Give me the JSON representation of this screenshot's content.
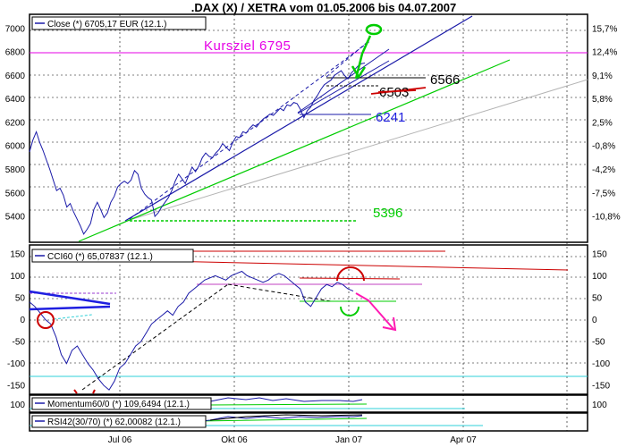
{
  "title": ".DAX (X) / XETRA vom 01.05.2006 bis 04.07.2007",
  "colors": {
    "price_line": "#1a1aa8",
    "dashed_line": "#1a1aa8",
    "target": "#e600e6",
    "support_green": "#00cc00",
    "support_gray": "#b4b4b4",
    "resistance_red": "#cc0000",
    "arrow_pink": "#ff1ab3",
    "cyan": "#2fd0d8",
    "black": "#000000",
    "blue_marker": "#1f1fe0"
  },
  "chart_data": [
    {
      "type": "line",
      "panel": "price",
      "legend": "Close (*) 6705,17 EUR (12.1.)",
      "y_range": [
        5180,
        7120
      ],
      "y_ticks_left": [
        "7000",
        "6800",
        "6600",
        "6400",
        "6200",
        "6000",
        "5800",
        "5600",
        "5400"
      ],
      "y_ticks_right": [
        "15,7%",
        "12,4%",
        "9,1%",
        "5,8%",
        "2,5%",
        "-0,8%",
        "-4,2%",
        "-7,5%",
        "-10,8%"
      ],
      "x_tick_labels": [
        "Jul 06",
        "Okt 06",
        "Jan 07",
        "Apr 07"
      ],
      "series": [
        {
          "values": [
            5950,
            6050,
            6120,
            6030,
            5960,
            5880,
            5800,
            5710,
            5620,
            5640,
            5580,
            5480,
            5510,
            5440,
            5380,
            5320,
            5250,
            5290,
            5340,
            5460,
            5520,
            5460,
            5390,
            5430,
            5520,
            5570,
            5650,
            5680,
            5700,
            5680,
            5710,
            5790,
            5760,
            5640,
            5590,
            5560,
            5540,
            5400,
            5430,
            5480,
            5520,
            5560,
            5620,
            5700,
            5760,
            5720,
            5680,
            5750,
            5820,
            5780,
            5830,
            5900,
            5940,
            5910,
            5900,
            5940,
            5970,
            6020,
            5990,
            5960,
            6030,
            6080,
            6070,
            6120,
            6110,
            6150,
            6180,
            6160,
            6200,
            6230,
            6250,
            6270,
            6260,
            6290,
            6320,
            6300,
            6350,
            6340,
            6370,
            6360,
            6310,
            6240,
            6300,
            6330,
            6390,
            6430,
            6480,
            6520,
            6540,
            6560,
            6600,
            6620,
            6640,
            6600,
            6570,
            6620,
            6650,
            6680,
            6700,
            6705
          ]
        }
      ],
      "annotations": [
        {
          "label": "Kursziel 6795",
          "value": 6795
        },
        {
          "label": "6566",
          "value": 6566
        },
        {
          "label": "6503",
          "value": 6503
        },
        {
          "label": "6241",
          "value": 6241
        },
        {
          "label": "5396",
          "value": 5396
        }
      ]
    },
    {
      "type": "line",
      "panel": "cci",
      "legend": "CCI60 (*) 65,07837 (12.1.)",
      "y_range": [
        -170,
        170
      ],
      "y_ticks": [
        "150",
        "100",
        "50",
        "0",
        "-50",
        "-100",
        "-150"
      ],
      "series": [
        {
          "values": [
            40,
            30,
            15,
            0,
            -10,
            -40,
            -80,
            -100,
            -70,
            -60,
            -80,
            -100,
            -115,
            -135,
            -150,
            -160,
            -140,
            -110,
            -100,
            -80,
            -60,
            -50,
            -30,
            -10,
            0,
            10,
            20,
            10,
            30,
            40,
            60,
            70,
            80,
            90,
            95,
            100,
            95,
            90,
            100,
            105,
            110,
            100,
            95,
            90,
            85,
            90,
            100,
            105,
            100,
            90,
            80,
            70,
            40,
            30,
            50,
            70,
            80,
            75,
            85,
            80,
            70,
            65
          ]
        }
      ]
    },
    {
      "type": "line",
      "panel": "momentum",
      "legend": "Momentum60/0 (*) 109,6494 (12.1.)",
      "y_ticks": [
        "100"
      ]
    },
    {
      "type": "line",
      "panel": "rsi",
      "legend": "RSI42(30/70) (*) 62,00082 (12.1.)"
    }
  ]
}
